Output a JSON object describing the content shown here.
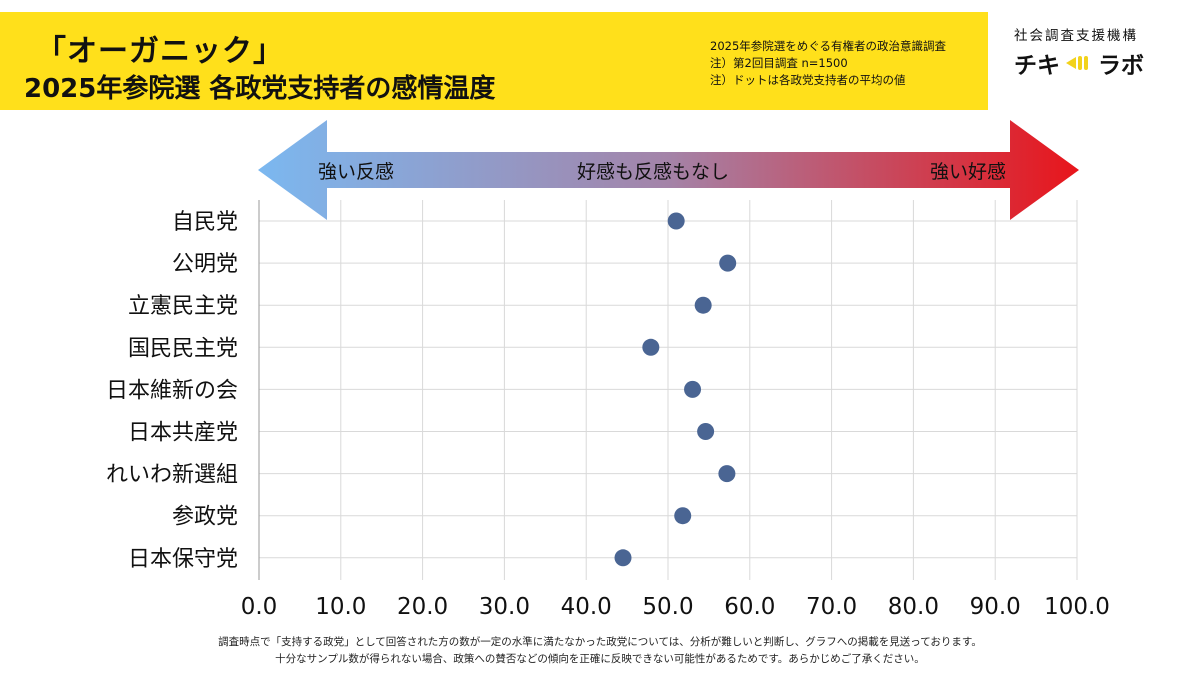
{
  "header": {
    "title_line1": "「オーガニック」",
    "title_line2": "2025年参院選 各政党支持者の感情温度",
    "notes": [
      "2025年参院選をめぐる有権者の政治意識調査",
      "注）第2回目調査 n=1500",
      "注）ドットは各政党支持者の平均の値"
    ],
    "bg_color": "#FFE01B"
  },
  "logo": {
    "org": "社会調査支援機構",
    "brand_left": "チキ",
    "brand_right": "ラボ"
  },
  "scale_arrow": {
    "left_label": "強い反感",
    "center_label": "好感も反感もなし",
    "right_label": "強い好感",
    "left_color": "#7BB8F0",
    "right_color": "#E8151B"
  },
  "chart_data": {
    "type": "scatter",
    "categories": [
      "自民党",
      "公明党",
      "立憲民主党",
      "国民民主党",
      "日本維新の会",
      "日本共産党",
      "れいわ新選組",
      "参政党",
      "日本保守党"
    ],
    "values": [
      51.0,
      57.3,
      54.3,
      47.9,
      53.0,
      54.6,
      57.2,
      51.8,
      44.5
    ],
    "xlim": [
      0,
      100
    ],
    "xticks": [
      "0.0",
      "10.0",
      "20.0",
      "30.0",
      "40.0",
      "50.0",
      "60.0",
      "70.0",
      "80.0",
      "90.0",
      "100.0"
    ],
    "grid": true,
    "dot_color": "#4A6593"
  },
  "footnote": [
    "調査時点で「支持する政党」として回答された方の数が一定の水準に満たなかった政党については、分析が難しいと判断し、グラフへの掲載を見送っております。",
    "十分なサンプル数が得られない場合、政策への賛否などの傾向を正確に反映できない可能性があるためです。あらかじめご了承ください。"
  ]
}
